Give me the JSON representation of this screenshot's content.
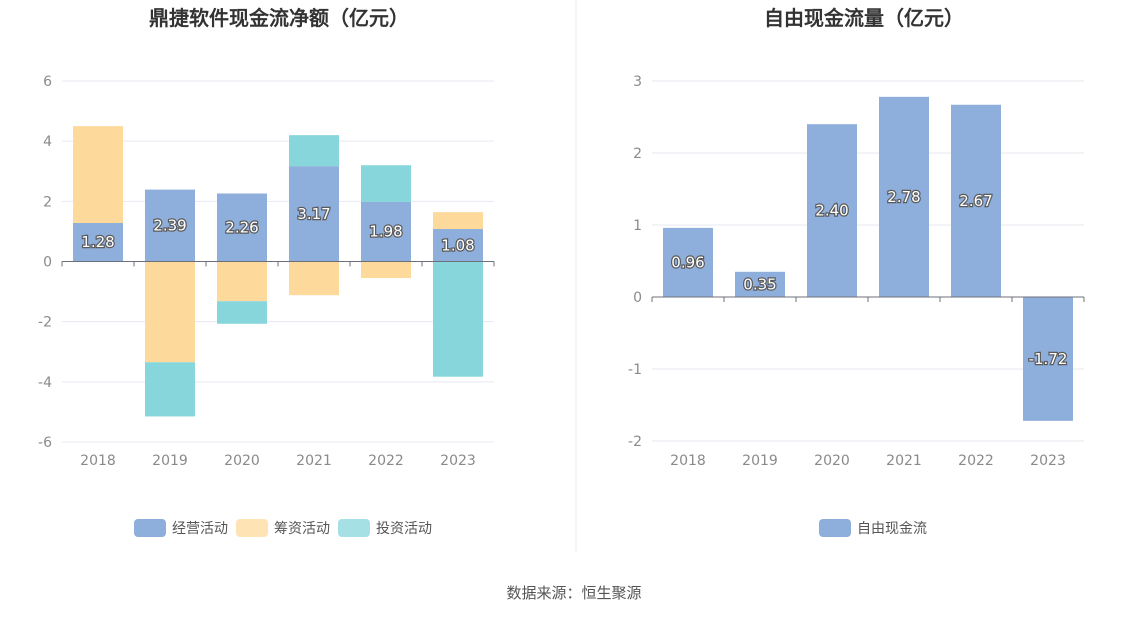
{
  "source": "数据来源：恒生聚源",
  "chart_data": [
    {
      "type": "bar",
      "stacked": true,
      "title": "鼎捷软件现金流净额（亿元）",
      "categories": [
        "2018",
        "2019",
        "2020",
        "2021",
        "2022",
        "2023"
      ],
      "ylim": [
        -6,
        6
      ],
      "yticks": [
        "6",
        "4",
        "2",
        "0",
        "-2",
        "-4",
        "-6"
      ],
      "grid": true,
      "legend_position": "bottom",
      "series": [
        {
          "name": "经营活动",
          "color": "#8eaedb",
          "values": [
            1.28,
            2.39,
            2.26,
            3.17,
            1.98,
            1.08
          ],
          "labels": [
            "1.28",
            "2.39",
            "2.26",
            "3.17",
            "1.98",
            "1.08"
          ]
        },
        {
          "name": "筹资活动",
          "color": "#fdd99b",
          "values": [
            3.22,
            -3.35,
            -1.32,
            -1.12,
            -0.55,
            0.56
          ]
        },
        {
          "name": "投资活动",
          "color": "#86d6db",
          "values": [
            0,
            -1.8,
            -0.75,
            1.03,
            1.22,
            -3.83
          ]
        }
      ]
    },
    {
      "type": "bar",
      "title": "自由现金流量（亿元）",
      "categories": [
        "2018",
        "2019",
        "2020",
        "2021",
        "2022",
        "2023"
      ],
      "ylim": [
        -2,
        3
      ],
      "yticks": [
        "3",
        "2",
        "1",
        "0",
        "-1",
        "-2"
      ],
      "grid": true,
      "legend_position": "bottom",
      "series": [
        {
          "name": "自由现金流",
          "color": "#8eaedb",
          "values": [
            0.96,
            0.35,
            2.4,
            2.78,
            2.67,
            -1.72
          ],
          "labels": [
            "0.96",
            "0.35",
            "2.40",
            "2.78",
            "2.67",
            "-1.72"
          ]
        }
      ]
    }
  ]
}
